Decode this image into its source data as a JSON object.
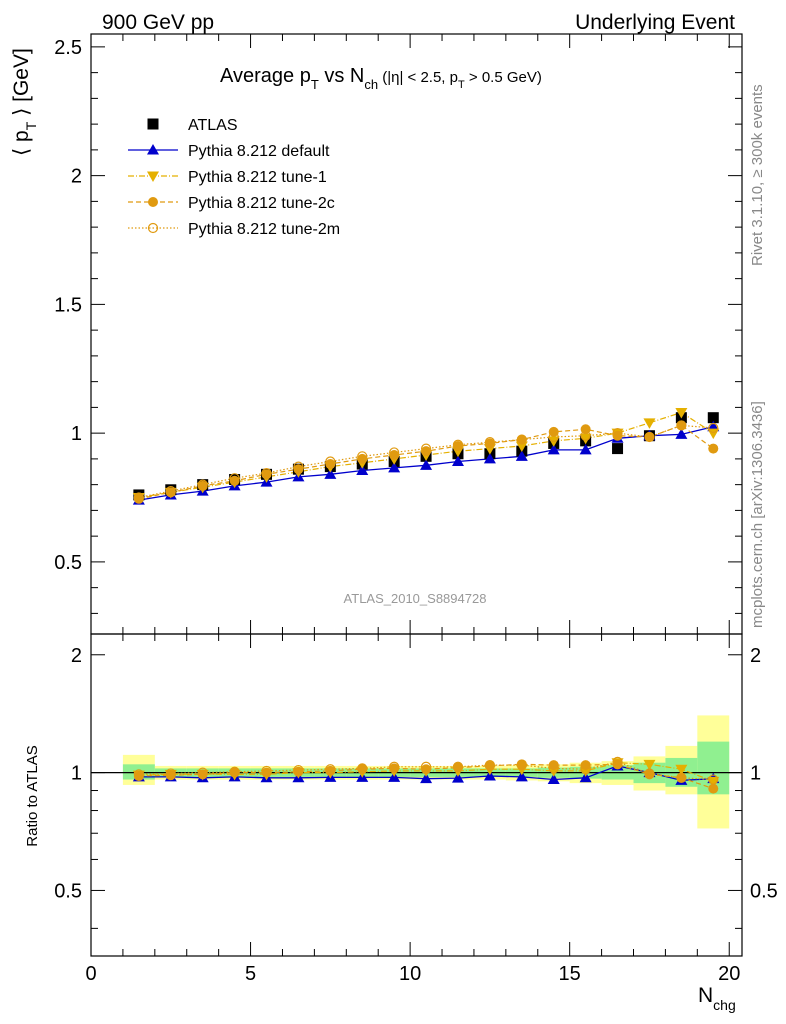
{
  "header": {
    "left": "900 GeV pp",
    "right": "Underlying Event"
  },
  "side_text": {
    "rivet": "Rivet 3.1.10, ≥ 300k events",
    "mcplots": "mcplots.cern.ch [arXiv:1306.3436]"
  },
  "colors": {
    "atlas": "#000000",
    "default": "#0000cc",
    "tune1": "#e5b000",
    "tune2c": "#e09a10",
    "tune2m": "#e09a10",
    "band_inner": "#90f090",
    "band_outer": "#ffff99"
  },
  "chart_data": [
    {
      "type": "scatter",
      "panel": "main",
      "title": {
        "main": "Average p",
        "sub_t": "T",
        "vs": " vs N",
        "sub_ch": "ch",
        "cut1": " (|η| < 2.5, p",
        "cut_t": "T",
        "cut2": " > 0.5 GeV)"
      },
      "ylabel": {
        "left": "⟨ p",
        "sub": "T",
        "right": " ⟩ [GeV]"
      },
      "watermark": "ATLAS_2010_S8894728",
      "ylim": [
        0.22,
        2.55
      ],
      "xlim": [
        0,
        20.4
      ],
      "yticks": [
        0.5,
        1,
        1.5,
        2,
        2.5
      ],
      "ytick_labels": [
        "0.5",
        "1",
        "1.5",
        "2",
        "2.5"
      ],
      "x": [
        1.5,
        2.5,
        3.5,
        4.5,
        5.5,
        6.5,
        7.5,
        8.5,
        9.5,
        10.5,
        11.5,
        12.5,
        13.5,
        14.5,
        15.5,
        16.5,
        17.5,
        18.5,
        19.5
      ],
      "legend_position": "top-left",
      "series": [
        {
          "name": "ATLAS",
          "values": [
            0.76,
            0.78,
            0.8,
            0.82,
            0.84,
            0.86,
            0.87,
            0.88,
            0.89,
            0.91,
            0.92,
            0.92,
            0.93,
            0.96,
            0.97,
            0.94,
            0.99,
            1.06,
            1.06
          ]
        },
        {
          "name": "Pythia 8.212 default",
          "values": [
            0.74,
            0.76,
            0.775,
            0.795,
            0.81,
            0.83,
            0.84,
            0.855,
            0.865,
            0.875,
            0.89,
            0.9,
            0.91,
            0.935,
            0.935,
            0.98,
            0.99,
            0.995,
            1.025
          ]
        },
        {
          "name": "Pythia 8.212 tune-1",
          "values": [
            0.75,
            0.77,
            0.79,
            0.81,
            0.83,
            0.85,
            0.87,
            0.885,
            0.9,
            0.915,
            0.93,
            0.94,
            0.95,
            0.97,
            0.98,
            1.0,
            1.04,
            1.08,
            1.0
          ]
        },
        {
          "name": "Pythia 8.212 tune-2c",
          "values": [
            0.745,
            0.77,
            0.795,
            0.815,
            0.84,
            0.86,
            0.88,
            0.9,
            0.915,
            0.93,
            0.95,
            0.96,
            0.975,
            1.005,
            1.015,
            0.99,
            0.985,
            1.03,
            0.94
          ]
        },
        {
          "name": "Pythia 8.212 tune-2m",
          "values": [
            0.75,
            0.775,
            0.8,
            0.825,
            0.845,
            0.87,
            0.89,
            0.91,
            0.925,
            0.94,
            0.955,
            0.965,
            0.975,
            0.985,
            0.99,
            1.0,
            0.985,
            1.03,
            1.02
          ]
        }
      ]
    },
    {
      "type": "scatter",
      "panel": "ratio",
      "ylabel": "Ratio to ATLAS",
      "ylim": [
        0.34,
        2.26
      ],
      "xlim": [
        0,
        20.4
      ],
      "xlabel": {
        "main": "N",
        "sub": "chg"
      },
      "yticks": [
        0.5,
        1,
        2
      ],
      "ytick_labels": [
        "0.5",
        "1",
        "2"
      ],
      "xticks": [
        0,
        5,
        10,
        15,
        20
      ],
      "xtick_labels": [
        "0",
        "5",
        "10",
        "15",
        "20"
      ],
      "x": [
        1.5,
        2.5,
        3.5,
        4.5,
        5.5,
        6.5,
        7.5,
        8.5,
        9.5,
        10.5,
        11.5,
        12.5,
        13.5,
        14.5,
        15.5,
        16.5,
        17.5,
        18.5,
        19.5
      ],
      "bands": {
        "inner": [
          [
            0.96,
            1.05
          ],
          [
            0.975,
            1.025
          ],
          [
            0.975,
            1.025
          ],
          [
            0.975,
            1.025
          ],
          [
            0.975,
            1.025
          ],
          [
            0.975,
            1.025
          ],
          [
            0.975,
            1.025
          ],
          [
            0.975,
            1.025
          ],
          [
            0.975,
            1.025
          ],
          [
            0.975,
            1.025
          ],
          [
            0.975,
            1.025
          ],
          [
            0.975,
            1.025
          ],
          [
            0.975,
            1.025
          ],
          [
            0.97,
            1.03
          ],
          [
            0.965,
            1.035
          ],
          [
            0.96,
            1.045
          ],
          [
            0.94,
            1.06
          ],
          [
            0.92,
            1.09
          ],
          [
            0.88,
            1.2
          ]
        ],
        "outer": [
          [
            0.93,
            1.11
          ],
          [
            0.96,
            1.04
          ],
          [
            0.96,
            1.04
          ],
          [
            0.96,
            1.04
          ],
          [
            0.96,
            1.04
          ],
          [
            0.96,
            1.04
          ],
          [
            0.96,
            1.04
          ],
          [
            0.96,
            1.04
          ],
          [
            0.96,
            1.04
          ],
          [
            0.96,
            1.04
          ],
          [
            0.96,
            1.04
          ],
          [
            0.96,
            1.04
          ],
          [
            0.955,
            1.045
          ],
          [
            0.95,
            1.05
          ],
          [
            0.94,
            1.06
          ],
          [
            0.93,
            1.07
          ],
          [
            0.9,
            1.1
          ],
          [
            0.88,
            1.17
          ],
          [
            0.72,
            1.4
          ]
        ]
      },
      "series": [
        {
          "name": "Pythia 8.212 default",
          "values": [
            0.975,
            0.975,
            0.97,
            0.975,
            0.97,
            0.97,
            0.972,
            0.972,
            0.972,
            0.965,
            0.968,
            0.98,
            0.975,
            0.96,
            0.97,
            1.04,
            1.0,
            0.955,
            0.965
          ]
        },
        {
          "name": "Pythia 8.212 tune-1",
          "values": [
            0.985,
            0.99,
            0.99,
            0.99,
            0.99,
            1.0,
            1.0,
            1.005,
            1.01,
            1.01,
            1.01,
            1.02,
            1.02,
            1.01,
            1.01,
            1.06,
            1.05,
            1.02,
            0.95
          ]
        },
        {
          "name": "Pythia 8.212 tune-2c",
          "values": [
            0.98,
            0.985,
            0.99,
            1.0,
            1.0,
            1.005,
            1.01,
            1.02,
            1.025,
            1.02,
            1.03,
            1.04,
            1.05,
            1.045,
            1.045,
            1.05,
            0.99,
            0.97,
            0.91
          ]
        },
        {
          "name": "Pythia 8.212 tune-2m",
          "values": [
            0.99,
            0.995,
            1.0,
            1.005,
            1.01,
            1.015,
            1.02,
            1.025,
            1.035,
            1.035,
            1.035,
            1.045,
            1.045,
            1.025,
            1.02,
            1.065,
            0.995,
            0.97,
            0.96
          ]
        }
      ]
    }
  ]
}
